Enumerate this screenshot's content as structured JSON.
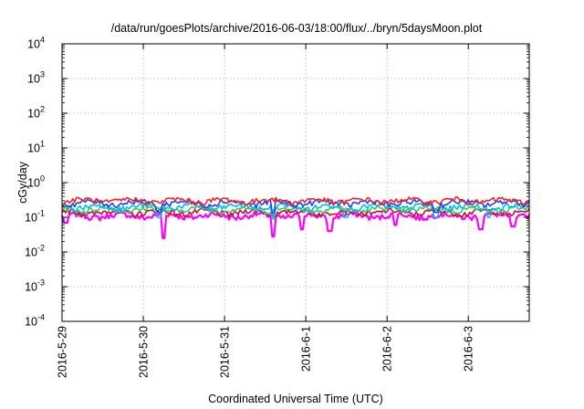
{
  "chart_data": {
    "type": "line",
    "title": "/data/run/goesPlots/archive/2016-06-03/18:00/flux/../bryn/5daysMoon.plot",
    "xlabel": "Coordinated Universal Time (UTC)",
    "ylabel": "cGy/day",
    "y_scale": "log",
    "ylim": [
      0.0001,
      10000
    ],
    "y_ticks": [
      {
        "value": 0.0001,
        "base": "10",
        "exp": "-4"
      },
      {
        "value": 0.001,
        "base": "10",
        "exp": "-3"
      },
      {
        "value": 0.01,
        "base": "10",
        "exp": "-2"
      },
      {
        "value": 0.1,
        "base": "10",
        "exp": "-1"
      },
      {
        "value": 1,
        "base": "10",
        "exp": "0"
      },
      {
        "value": 10,
        "base": "10",
        "exp": "1"
      },
      {
        "value": 100,
        "base": "10",
        "exp": "2"
      },
      {
        "value": 1000,
        "base": "10",
        "exp": "3"
      },
      {
        "value": 10000,
        "base": "10",
        "exp": "4"
      }
    ],
    "xlim": [
      "2016-05-29 00:00",
      "2016-06-03 18:00"
    ],
    "x_ticks": [
      "2016-5-29",
      "2016-5-30",
      "2016-5-31",
      "2016-6-1",
      "2016-6-2",
      "2016-6-3"
    ],
    "grid": true,
    "series": [
      {
        "color": "#ff00ff",
        "base": 0.11,
        "dips": [
          [
            1.25,
            0.025
          ],
          [
            2.6,
            0.028
          ],
          [
            2.95,
            0.045
          ],
          [
            3.3,
            0.04
          ],
          [
            4.1,
            0.06
          ],
          [
            5.15,
            0.045
          ],
          [
            5.55,
            0.055
          ],
          [
            0.05,
            0.07
          ]
        ]
      },
      {
        "color": "#c8102e",
        "base": 0.14,
        "dips": []
      },
      {
        "color": "#33cc66",
        "base": 0.17,
        "dips": []
      },
      {
        "color": "#00c0e0",
        "base": 0.2,
        "dips": [
          [
            1.2,
            0.1
          ],
          [
            2.6,
            0.09
          ],
          [
            3.5,
            0.1
          ],
          [
            4.6,
            0.1
          ],
          [
            5.25,
            0.1
          ]
        ]
      },
      {
        "color": "#1f3fff",
        "base": 0.26,
        "dips": [
          [
            1.2,
            0.14
          ],
          [
            2.6,
            0.13
          ],
          [
            4.6,
            0.14
          ]
        ]
      },
      {
        "color": "#ff2020",
        "base": 0.3,
        "dips": []
      }
    ]
  }
}
